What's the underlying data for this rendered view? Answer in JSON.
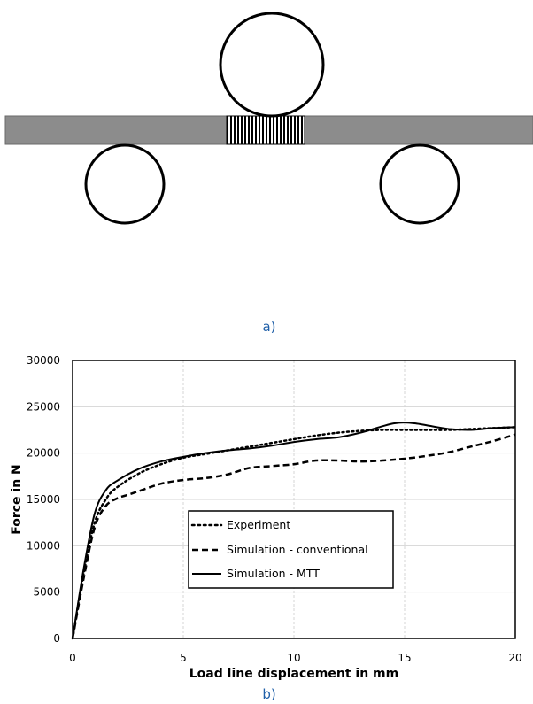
{
  "figure": {
    "panel_a_label": "a)",
    "panel_b_label": "b)"
  },
  "colors": {
    "bar_fill": "#8c8c8c",
    "label_blue": "#1f5fa8"
  },
  "chart_data": {
    "type": "line",
    "title": "",
    "xlabel": "Load line displacement in mm",
    "ylabel": "Force in N",
    "xlim": [
      0,
      20
    ],
    "ylim": [
      0,
      30000
    ],
    "xticks": [
      0,
      5,
      10,
      15,
      20
    ],
    "yticks": [
      0,
      5000,
      10000,
      15000,
      20000,
      25000,
      30000
    ],
    "grid": true,
    "legend_position": "center",
    "series": [
      {
        "name": "Experiment",
        "style": "dotted",
        "x": [
          0,
          0.5,
          1.0,
          1.5,
          2.0,
          3.0,
          4.0,
          5.0,
          6.0,
          7.0,
          8.0,
          9.0,
          10.0,
          11.0,
          12.0,
          13.0,
          14.0,
          15.0,
          16.0,
          17.0,
          18.0,
          19.0,
          20.0
        ],
        "y": [
          0,
          7000,
          12500,
          15000,
          16300,
          17800,
          18800,
          19500,
          19900,
          20300,
          20700,
          21100,
          21500,
          21900,
          22200,
          22400,
          22500,
          22500,
          22500,
          22500,
          22600,
          22700,
          22800
        ]
      },
      {
        "name": "Simulation - conventional",
        "style": "dashed",
        "x": [
          0,
          0.5,
          1.0,
          1.5,
          2.0,
          2.5,
          3.0,
          4.0,
          5.0,
          6.0,
          7.0,
          8.0,
          9.0,
          10.0,
          11.0,
          12.0,
          13.0,
          14.0,
          15.0,
          16.0,
          17.0,
          18.0,
          19.0,
          20.0
        ],
        "y": [
          0,
          6500,
          12000,
          14300,
          15100,
          15500,
          15900,
          16700,
          17100,
          17300,
          17700,
          18400,
          18600,
          18800,
          19200,
          19200,
          19100,
          19200,
          19400,
          19700,
          20100,
          20700,
          21300,
          22000
        ]
      },
      {
        "name": "Simulation - MTT",
        "style": "solid",
        "x": [
          0,
          0.5,
          1.0,
          1.5,
          2.0,
          3.0,
          4.0,
          5.0,
          6.0,
          7.0,
          8.0,
          9.0,
          10.0,
          11.0,
          12.0,
          13.0,
          14.0,
          14.5,
          15.0,
          15.5,
          16.0,
          17.0,
          18.0,
          19.0,
          20.0
        ],
        "y": [
          0,
          7500,
          13500,
          16000,
          17000,
          18300,
          19100,
          19600,
          20000,
          20300,
          20500,
          20800,
          21200,
          21500,
          21700,
          22200,
          22900,
          23200,
          23300,
          23200,
          23000,
          22600,
          22500,
          22700,
          22800
        ]
      }
    ]
  }
}
